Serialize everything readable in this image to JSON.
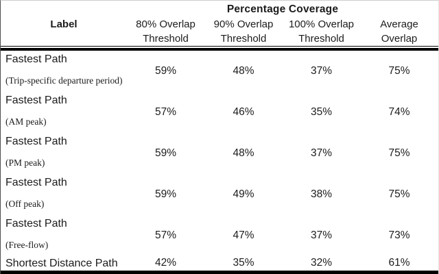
{
  "table": {
    "group_header": "Percentage Coverage",
    "columns": [
      {
        "line1": "Label",
        "line2": ""
      },
      {
        "line1": "80% Overlap",
        "line2": "Threshold"
      },
      {
        "line1": "90% Overlap",
        "line2": "Threshold"
      },
      {
        "line1": "100% Overlap",
        "line2": "Threshold"
      },
      {
        "line1": "Average",
        "line2": "Overlap"
      }
    ],
    "rows": [
      {
        "label": "Fastest Path",
        "sublabel": "(Trip-specific departure period)",
        "values": [
          "59%",
          "48%",
          "37%",
          "75%"
        ]
      },
      {
        "label": "Fastest Path",
        "sublabel": "(AM peak)",
        "values": [
          "57%",
          "46%",
          "35%",
          "74%"
        ]
      },
      {
        "label": "Fastest Path",
        "sublabel": "(PM peak)",
        "values": [
          "59%",
          "48%",
          "37%",
          "75%"
        ]
      },
      {
        "label": "Fastest Path",
        "sublabel": "(Off peak)",
        "values": [
          "59%",
          "49%",
          "38%",
          "75%"
        ]
      },
      {
        "label": "Fastest Path",
        "sublabel": "(Free-flow)",
        "values": [
          "57%",
          "47%",
          "37%",
          "73%"
        ]
      },
      {
        "label": "Shortest Distance Path",
        "sublabel": "",
        "values": [
          "42%",
          "35%",
          "32%",
          "61%"
        ]
      }
    ],
    "colors": {
      "text": "#1b1b1b",
      "rule": "#000000",
      "background": "#ffffff"
    }
  }
}
